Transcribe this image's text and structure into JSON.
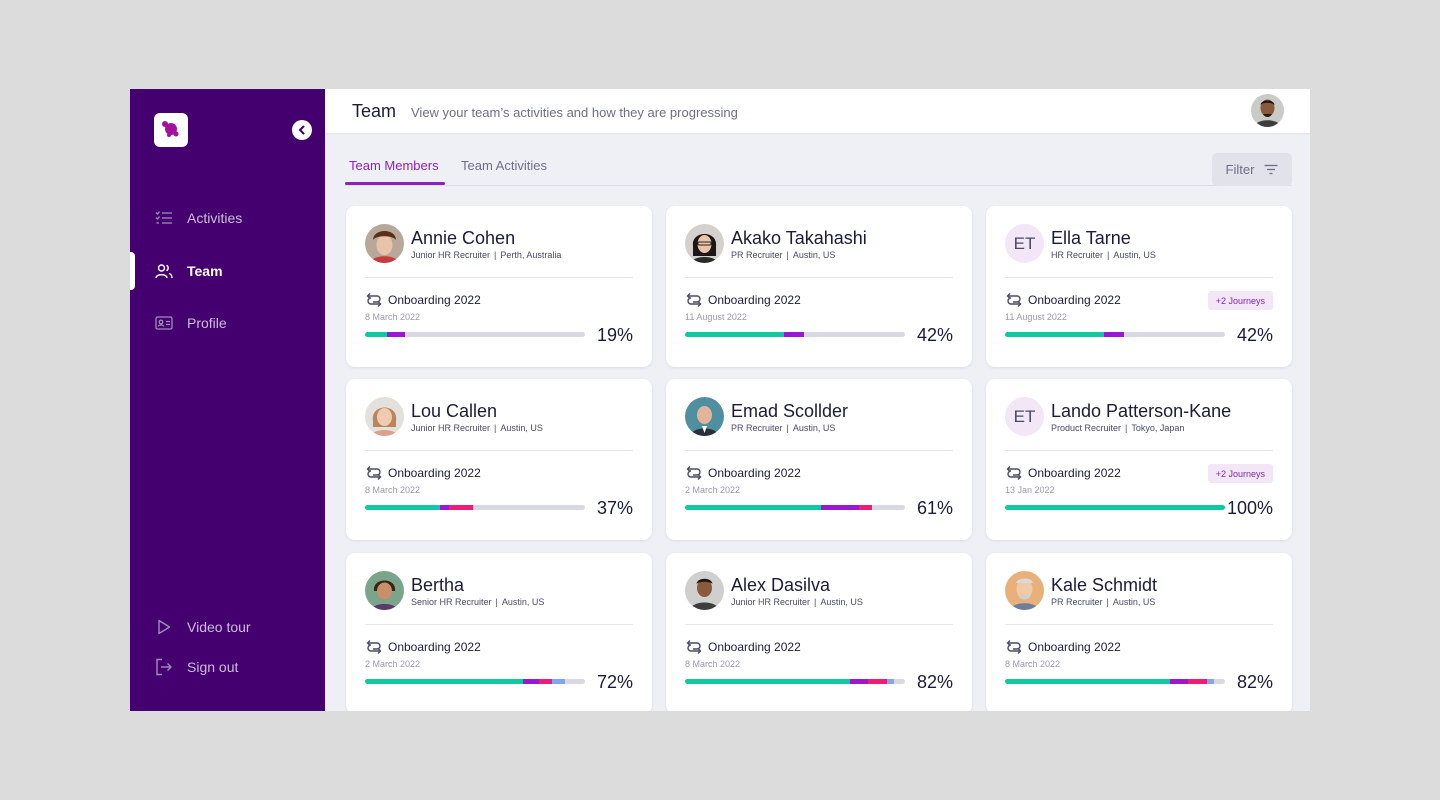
{
  "header": {
    "title": "Team",
    "subtitle": "View your team’s activities and how they are progressing"
  },
  "sidebar": {
    "items": [
      {
        "label": "Activities",
        "icon": "checklist-icon"
      },
      {
        "label": "Team",
        "icon": "team-icon",
        "active": true
      },
      {
        "label": "Profile",
        "icon": "id-card-icon"
      }
    ],
    "bottom": [
      {
        "label": "Video tour",
        "icon": "play-icon"
      },
      {
        "label": "Sign out",
        "icon": "sign-out-icon"
      }
    ]
  },
  "tabs": [
    {
      "label": "Team Members",
      "active": true
    },
    {
      "label": "Team Activities",
      "active": false
    }
  ],
  "filter_label": "Filter",
  "colors": {
    "sidebar": "#43006e",
    "accent": "#8a22b8",
    "bar_green": "#10c9a2",
    "bar_purple": "#9a17d4",
    "bar_pink": "#ee1c74",
    "bar_blue": "#7ea7ee"
  },
  "members": [
    {
      "name": "Annie Cohen",
      "role": "Junior HR Recruiter",
      "location": "Perth, Australia",
      "journey": "Onboarding 2022",
      "date": "8 March 2022",
      "percent": "19%",
      "progress": {
        "green": 0.1,
        "purple": 0.08,
        "pink": 0,
        "blue": 0
      }
    },
    {
      "name": "Akako Takahashi",
      "role": "PR Recruiter",
      "location": "Austin, US",
      "journey": "Onboarding 2022",
      "date": "11 August 2022",
      "percent": "42%",
      "progress": {
        "green": 0.45,
        "purple": 0.09,
        "pink": 0,
        "blue": 0
      }
    },
    {
      "name": "Ella Tarne",
      "initials": "ET",
      "role": "HR Recruiter",
      "location": "Austin, US",
      "journey": "Onboarding 2022",
      "date": "11 August 2022",
      "badge": "+2 Journeys",
      "percent": "42%",
      "progress": {
        "green": 0.45,
        "purple": 0.09,
        "pink": 0,
        "blue": 0
      }
    },
    {
      "name": "Lou Callen",
      "role": "Junior HR Recruiter",
      "location": "Austin, US",
      "journey": "Onboarding 2022",
      "date": "8 March 2022",
      "percent": "37%",
      "progress": {
        "green": 0.34,
        "purple": 0.04,
        "pink": 0.11,
        "blue": 0
      }
    },
    {
      "name": "Emad Scollder",
      "role": "PR Recruiter",
      "location": "Austin, US",
      "journey": "Onboarding 2022",
      "date": "2 March 2022",
      "percent": "61%",
      "progress": {
        "green": 0.62,
        "purple": 0.17,
        "pink": 0.06,
        "blue": 0
      }
    },
    {
      "name": "Lando Patterson-Kane",
      "initials": "ET",
      "role": "Product Recruiter",
      "location": "Tokyo, Japan",
      "journey": "Onboarding 2022",
      "date": "13 Jan 2022",
      "badge": "+2 Journeys",
      "percent": "100%",
      "progress": {
        "green": 1.0,
        "purple": 0,
        "pink": 0,
        "blue": 0
      }
    },
    {
      "name": "Bertha",
      "role": "Senior HR Recruiter",
      "location": "Austin, US",
      "journey": "Onboarding 2022",
      "date": "2 March 2022",
      "percent": "72%",
      "progress": {
        "green": 0.72,
        "purple": 0.07,
        "pink": 0.06,
        "blue": 0.06
      }
    },
    {
      "name": "Alex Dasilva",
      "role": "Junior HR Recruiter",
      "location": "Austin, US",
      "journey": "Onboarding 2022",
      "date": "8 March 2022",
      "percent": "82%",
      "progress": {
        "green": 0.75,
        "purple": 0.08,
        "pink": 0.09,
        "blue": 0.03
      }
    },
    {
      "name": "Kale Schmidt",
      "role": "PR Recruiter",
      "location": "Austin, US",
      "journey": "Onboarding 2022",
      "date": "8 March 2022",
      "percent": "82%",
      "progress": {
        "green": 0.75,
        "purple": 0.08,
        "pink": 0.09,
        "blue": 0.03
      }
    }
  ]
}
